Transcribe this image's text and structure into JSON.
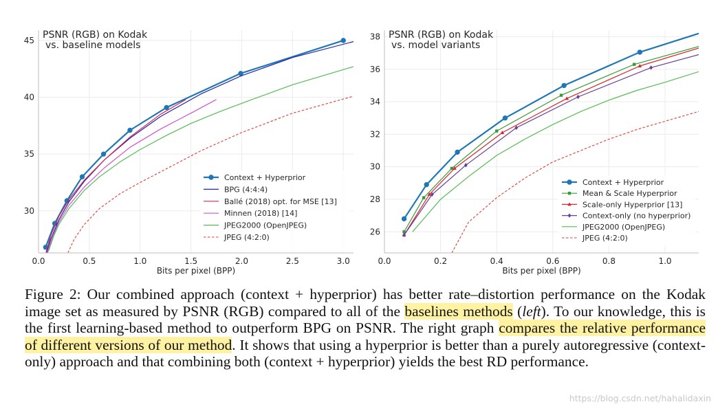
{
  "chart_data": [
    {
      "type": "line",
      "title": "PSNR (RGB) on Kodak\nvs. baseline models",
      "xlabel": "Bits per pixel (BPP)",
      "ylabel": "",
      "xlim": [
        0,
        3.1
      ],
      "ylim": [
        26.3,
        45.9
      ],
      "xticks": [
        0.0,
        0.5,
        1.0,
        1.5,
        2.0,
        2.5,
        3.0
      ],
      "xtick_labels": [
        "0.0",
        "0.5",
        "1.0",
        "1.5",
        "2.0",
        "2.5",
        "3.0"
      ],
      "yticks": [
        30,
        35,
        40,
        45
      ],
      "ytick_labels": [
        "30",
        "35",
        "40",
        "45"
      ],
      "grid": true,
      "legend_position": "lower-right",
      "series": [
        {
          "name": "Context + Hyperprior",
          "color": "#1f77b4",
          "marker": "circle",
          "dash": "solid",
          "width": 2.2,
          "x": [
            0.07,
            0.16,
            0.28,
            0.43,
            0.64,
            0.9,
            1.26,
            1.99,
            3.0
          ],
          "y": [
            26.8,
            28.9,
            30.9,
            33.0,
            35.0,
            37.1,
            39.1,
            42.1,
            45.0
          ]
        },
        {
          "name": "BPG (4:4:4)",
          "color": "#2222aa",
          "marker": "none",
          "dash": "solid",
          "width": 1.2,
          "x": [
            0.07,
            0.12,
            0.2,
            0.3,
            0.45,
            0.65,
            0.9,
            1.2,
            1.6,
            2.0,
            2.5,
            3.1
          ],
          "y": [
            26.0,
            27.5,
            29.2,
            30.8,
            32.6,
            34.5,
            36.4,
            38.3,
            40.3,
            41.9,
            43.5,
            44.9
          ]
        },
        {
          "name": "Ballé (2018) opt. for MSE [13]",
          "color": "#d62751",
          "marker": "none",
          "dash": "solid",
          "width": 1.2,
          "x": [
            0.07,
            0.12,
            0.2,
            0.3,
            0.45,
            0.65,
            0.9,
            1.2,
            1.45
          ],
          "y": [
            26.2,
            27.8,
            29.5,
            31.0,
            32.7,
            34.5,
            36.5,
            38.5,
            39.8
          ]
        },
        {
          "name": "Minnen (2018) [14]",
          "color": "#cc55cc",
          "marker": "none",
          "dash": "solid",
          "width": 1.2,
          "x": [
            0.08,
            0.13,
            0.2,
            0.3,
            0.45,
            0.65,
            0.9,
            1.2,
            1.5,
            1.75
          ],
          "y": [
            26.0,
            27.5,
            29.0,
            30.5,
            32.1,
            33.8,
            35.6,
            37.2,
            38.6,
            39.8
          ]
        },
        {
          "name": "JPEG2000 (OpenJPEG)",
          "color": "#55bb55",
          "marker": "none",
          "dash": "solid",
          "width": 1.2,
          "x": [
            0.1,
            0.15,
            0.2,
            0.3,
            0.45,
            0.6,
            0.8,
            1.0,
            1.25,
            1.5,
            1.8,
            2.1,
            2.5,
            3.1
          ],
          "y": [
            26.5,
            27.8,
            28.8,
            30.2,
            31.8,
            33.0,
            34.3,
            35.4,
            36.6,
            37.7,
            38.8,
            39.8,
            41.1,
            42.7
          ]
        },
        {
          "name": "JPEG (4:2:0)",
          "color": "#e03c31",
          "marker": "none",
          "dash": "dashed",
          "width": 1.1,
          "x": [
            0.29,
            0.35,
            0.45,
            0.6,
            0.8,
            1.0,
            1.3,
            1.6,
            2.0,
            2.5,
            3.1
          ],
          "y": [
            26.3,
            27.5,
            28.8,
            30.2,
            31.5,
            32.5,
            33.9,
            35.3,
            36.9,
            38.6,
            40.1
          ]
        }
      ]
    },
    {
      "type": "line",
      "title": "PSNR (RGB) on Kodak\nvs. model variants",
      "xlabel": "Bits per pixel (BPP)",
      "ylabel": "",
      "xlim": [
        0,
        1.12
      ],
      "ylim": [
        24.7,
        38.4
      ],
      "xticks": [
        0.0,
        0.2,
        0.4,
        0.6,
        0.8,
        1.0
      ],
      "xtick_labels": [
        "0.0",
        "0.2",
        "0.4",
        "0.6",
        "0.8",
        "1.0"
      ],
      "yticks": [
        26,
        28,
        30,
        32,
        34,
        36,
        38
      ],
      "ytick_labels": [
        "26",
        "28",
        "30",
        "32",
        "34",
        "36",
        "38"
      ],
      "grid": true,
      "legend_position": "lower-right",
      "series": [
        {
          "name": "Context + Hyperprior",
          "color": "#1f77b4",
          "marker": "circle",
          "dash": "solid",
          "width": 2.2,
          "x": [
            0.07,
            0.15,
            0.26,
            0.43,
            0.64,
            0.91,
            1.12
          ],
          "y": [
            26.8,
            28.9,
            30.9,
            33.0,
            35.0,
            37.05,
            38.2
          ]
        },
        {
          "name": "Mean & Scale Hyperprior",
          "color": "#3a9a3a",
          "marker": "square",
          "dash": "solid",
          "width": 1.2,
          "x": [
            0.07,
            0.14,
            0.24,
            0.4,
            0.63,
            0.89,
            1.12
          ],
          "y": [
            26.0,
            28.1,
            29.9,
            32.2,
            34.4,
            36.3,
            37.4
          ]
        },
        {
          "name": "Scale-only Hyperprior [13]",
          "color": "#d62728",
          "marker": "triangle",
          "dash": "solid",
          "width": 1.2,
          "x": [
            0.07,
            0.16,
            0.25,
            0.42,
            0.65,
            0.91,
            1.12
          ],
          "y": [
            25.8,
            28.3,
            29.9,
            32.1,
            34.2,
            36.2,
            37.3
          ]
        },
        {
          "name": "Context-only (no hyperprior)",
          "color": "#6a3d9a",
          "marker": "diamond",
          "dash": "solid",
          "width": 1.2,
          "x": [
            0.07,
            0.17,
            0.29,
            0.47,
            0.69,
            0.95,
            1.12
          ],
          "y": [
            25.8,
            28.3,
            30.1,
            32.4,
            34.3,
            36.1,
            36.9
          ]
        },
        {
          "name": "JPEG2000 (OpenJPEG)",
          "color": "#55bb55",
          "marker": "none",
          "dash": "solid",
          "width": 1.2,
          "x": [
            0.1,
            0.15,
            0.2,
            0.3,
            0.4,
            0.5,
            0.6,
            0.7,
            0.8,
            0.9,
            1.0,
            1.12
          ],
          "y": [
            26.0,
            27.0,
            28.0,
            29.4,
            30.7,
            31.7,
            32.6,
            33.4,
            34.1,
            34.7,
            35.2,
            35.85
          ]
        },
        {
          "name": "JPEG (4:2:0)",
          "color": "#e03c31",
          "marker": "none",
          "dash": "dashed",
          "width": 1.1,
          "x": [
            0.24,
            0.3,
            0.4,
            0.5,
            0.6,
            0.7,
            0.8,
            0.9,
            1.0,
            1.12
          ],
          "y": [
            24.7,
            26.6,
            28.1,
            29.3,
            30.3,
            31.0,
            31.7,
            32.3,
            32.8,
            33.4
          ]
        }
      ]
    }
  ],
  "caption": {
    "seg1": "Figure 2: Our combined approach (context + hyperprior) has better rate–distortion performance on the Kodak image set as measured by PSNR (RGB) compared to all of the ",
    "hl1": "baselines methods",
    "seg2": " (",
    "em1": "left",
    "seg3": "). To our knowledge, this is the first learning-based method to outperform BPG on PSNR. The right graph ",
    "hl2": "compares the relative performance of different versions of our method",
    "seg4": ". It shows that using a hyperprior is better than a purely autoregressive (context-only) approach and that combining both (context + hyperprior) yields the best RD performance."
  },
  "watermark": "https://blog.csdn.net/hahalidaxin"
}
